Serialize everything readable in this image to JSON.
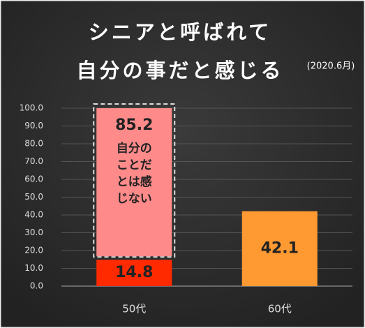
{
  "chart_data": {
    "type": "stacked_bar",
    "title": "シニアと呼ばれて",
    "subtitle": "自分の事だと感じる",
    "note": "(2020.6月)",
    "categories": [
      "50代",
      "60代"
    ],
    "series": [
      {
        "colors": [
          "#ff2a00",
          "#ff9a33"
        ],
        "values": [
          14.8,
          42.1
        ]
      },
      {
        "name": "自分のことだとは感じない",
        "color": "#ff8a8a",
        "values": [
          85.2,
          null
        ]
      }
    ],
    "ylim": [
      0,
      100
    ],
    "yticks": [
      {
        "value": 0,
        "label": "0.0"
      },
      {
        "value": 10,
        "label": "10.0"
      },
      {
        "value": 20,
        "label": "20.0"
      },
      {
        "value": 30,
        "label": "30.0"
      },
      {
        "value": 40,
        "label": "40.0"
      },
      {
        "value": 50,
        "label": "50.0"
      },
      {
        "value": 60,
        "label": "60.0"
      },
      {
        "value": 70,
        "label": "70.0"
      },
      {
        "value": 80,
        "label": "80.0"
      },
      {
        "value": 90,
        "label": "90.0"
      },
      {
        "value": 100,
        "label": "100.0"
      }
    ],
    "grid": true
  }
}
